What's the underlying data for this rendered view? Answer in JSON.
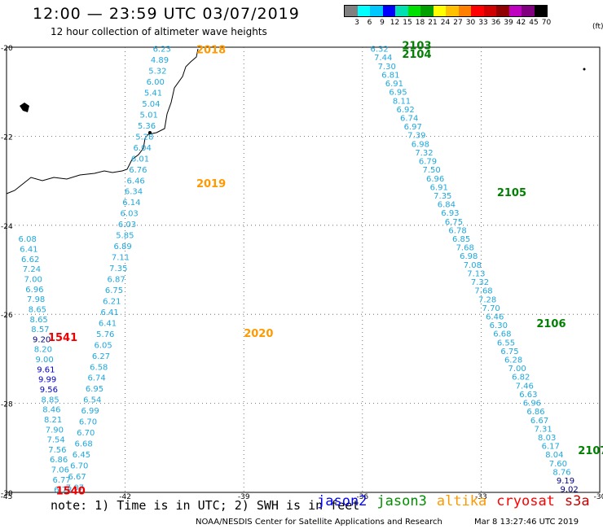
{
  "header": {
    "title": "12:00 — 23:59 UTC 03/07/2019",
    "subtitle": "12 hour collection of altimeter wave heights"
  },
  "scale": {
    "ticks": [
      "3",
      "6",
      "9",
      "12",
      "15",
      "18",
      "21",
      "24",
      "27",
      "30",
      "33",
      "36",
      "39",
      "42",
      "45",
      "70"
    ],
    "unit": "(ft)",
    "colors": [
      "#808080",
      "#00ffff",
      "#00c8ff",
      "#0000ff",
      "#00e0b0",
      "#00e000",
      "#00a000",
      "#ffff00",
      "#ffc000",
      "#ff8000",
      "#ff0000",
      "#d00000",
      "#900000",
      "#c000c0",
      "#800080",
      "#000000"
    ]
  },
  "axes": {
    "lon_labels": [
      "-45",
      "-42",
      "-39",
      "-36",
      "-33",
      "-30"
    ],
    "lat_labels": [
      "-20",
      "-22",
      "-24",
      "-26",
      "-28",
      "-30"
    ],
    "lon_range": [
      -45,
      -30
    ],
    "lat_range": [
      -20,
      -30
    ]
  },
  "colors": {
    "light_blue": "#1fa8dc",
    "blue": "#0000cc",
    "dark_blue": "#000080",
    "jason2": "#0000ff",
    "jason3": "#009000",
    "altika": "#ff9900",
    "cryosat": "#ff0000",
    "s3a": "#cc0000"
  },
  "pass_labels": [
    {
      "text": "2018",
      "color": "#ff9900",
      "lon": -40.2,
      "lat": -20.05
    },
    {
      "text": "2019",
      "color": "#ff9900",
      "lon": -40.2,
      "lat": -23.05
    },
    {
      "text": "2020",
      "color": "#ff9900",
      "lon": -39.0,
      "lat": -26.42
    },
    {
      "text": "2103",
      "color": "#008000",
      "lon": -35.0,
      "lat": -19.95
    },
    {
      "text": "2104",
      "color": "#008000",
      "lon": -35.0,
      "lat": -20.15
    },
    {
      "text": "2105",
      "color": "#008000",
      "lon": -32.6,
      "lat": -23.25
    },
    {
      "text": "2106",
      "color": "#008000",
      "lon": -31.6,
      "lat": -26.2
    },
    {
      "text": "2107",
      "color": "#008000",
      "lon": -30.55,
      "lat": -29.05
    },
    {
      "text": "1541",
      "color": "#ee0000",
      "lon": -43.95,
      "lat": -26.51
    },
    {
      "text": "1540",
      "color": "#ee0000",
      "lon": -43.75,
      "lat": -29.95
    }
  ],
  "tracks": [
    {
      "name": "altika-track",
      "start": [
        -41.3,
        -20.03
      ],
      "end": [
        -43.5,
        -29.88
      ],
      "values": [
        "6.23",
        "4.89",
        "5.32",
        "6.00",
        "5.41",
        "5.04",
        "5.01",
        "5.36",
        "5.28",
        "6.04",
        "6.01",
        "6.76",
        "6.46",
        "6.34",
        "6.14",
        "6.03",
        "6.03",
        "5.85",
        "6.89",
        "7.11",
        "7.35",
        "6.87",
        "6.75",
        "6.21",
        "6.41",
        "6.41",
        "5.76",
        "6.05",
        "6.27",
        "6.58",
        "6.74",
        "6.95",
        "6.54",
        "6.99",
        "6.70",
        "6.70",
        "6.68",
        "6.45",
        "6.70",
        "6.67",
        "7.07"
      ],
      "colors": {
        "blue": [],
        "dark": []
      }
    },
    {
      "name": "jason3-track",
      "start": [
        -35.8,
        -20.03
      ],
      "end": [
        -31.0,
        -29.92
      ],
      "values": [
        "6.32",
        "7.44",
        "7.30",
        "6.81",
        "6.91",
        "6.95",
        "8.11",
        "6.92",
        "6.74",
        "6.97",
        "7.39",
        "6.98",
        "7.32",
        "6.79",
        "7.50",
        "6.96",
        "6.91",
        "7.35",
        "6.84",
        "6.93",
        "6.75",
        "6.78",
        "6.85",
        "7.68",
        "6.98",
        "7.08",
        "7.13",
        "7.32",
        "7.68",
        "7.28",
        "7.70",
        "6.46",
        "6.30",
        "6.68",
        "6.55",
        "6.75",
        "6.28",
        "7.00",
        "6.82",
        "7.46",
        "6.63",
        "6.96",
        "6.86",
        "6.67",
        "7.31",
        "8.03",
        "6.17",
        "8.04",
        "7.60",
        "8.76",
        "9.19",
        "9.02"
      ],
      "colors": {
        "blue": [],
        "dark": [
          50,
          51
        ]
      }
    },
    {
      "name": "cryosat-track",
      "start": [
        -44.7,
        -24.3
      ],
      "end": [
        -43.8,
        -29.93
      ],
      "values": [
        "6.08",
        "6.41",
        "6.62",
        "7.24",
        "7.00",
        "6.96",
        "7.98",
        "8.65",
        "8.65",
        "8.57",
        "9.20",
        "8.20",
        "9.00",
        "9.61",
        "9.99",
        "9.56",
        "8.85",
        "8.46",
        "8.21",
        "7.90",
        "7.54",
        "7.56",
        "6.86",
        "7.06",
        "6.77",
        "6.73"
      ],
      "colors": {
        "blue": [
          13,
          14,
          15
        ],
        "dark": [
          10
        ]
      }
    }
  ],
  "footer": {
    "note": "note: 1) Time is in UTC; 2) SWH is in feet",
    "legend": [
      "jason2",
      "jason3",
      "altika",
      "cryosat",
      "s3a"
    ],
    "credit": "NOAA/NESDIS Center for Satellite Applications and Research",
    "timestamp": "Mar  8 13:27:46 UTC 2019"
  }
}
